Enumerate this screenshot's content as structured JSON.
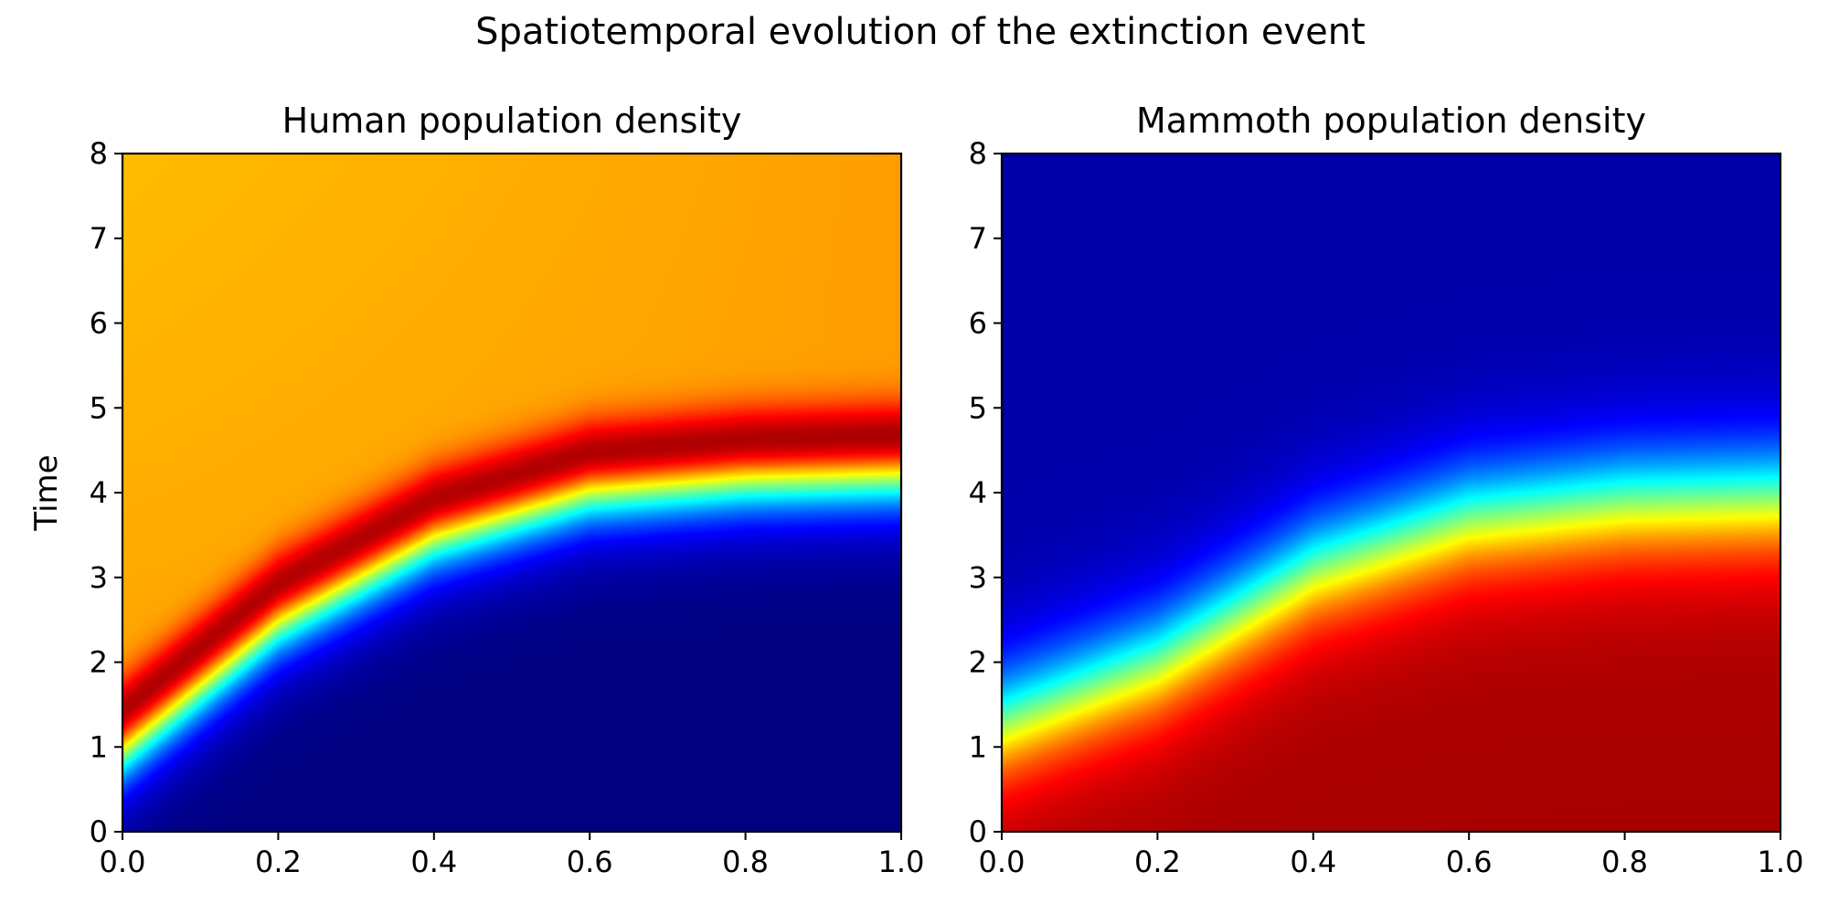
{
  "figure": {
    "suptitle": "Spatiotemporal evolution of the extinction event"
  },
  "chart_data": [
    {
      "type": "heatmap",
      "title": "Human population density",
      "xlabel": "",
      "ylabel": "Time",
      "xlim": [
        0,
        1
      ],
      "ylim": [
        0,
        8
      ],
      "xticks": [
        "0.0",
        "0.2",
        "0.4",
        "0.6",
        "0.8",
        "1.0"
      ],
      "yticks": [
        "0",
        "1",
        "2",
        "3",
        "4",
        "5",
        "6",
        "7",
        "8"
      ],
      "colormap": "jet",
      "colorbar": false,
      "grid": false,
      "front_curve": {
        "x": [
          0.0,
          0.2,
          0.4,
          0.6,
          0.8,
          1.0
        ],
        "t": [
          0.8,
          2.3,
          3.3,
          3.85,
          4.0,
          4.05
        ]
      },
      "notes_on_values": "normalized density (0 = dark blue, 1 = dark red); ~0.7-0.75 (orange) behind the front, peak (dark red) just behind the front, ~0 ahead of it"
    },
    {
      "type": "heatmap",
      "title": "Mammoth population density",
      "xlabel": "",
      "ylabel": "",
      "xlim": [
        0,
        1
      ],
      "ylim": [
        0,
        8
      ],
      "xticks": [
        "0.0",
        "0.2",
        "0.4",
        "0.6",
        "0.8",
        "1.0"
      ],
      "yticks": [
        "0",
        "1",
        "2",
        "3",
        "4",
        "5",
        "6",
        "7",
        "8"
      ],
      "colormap": "jet",
      "colorbar": false,
      "grid": false,
      "front_curve": {
        "x": [
          0.0,
          0.2,
          0.4,
          0.6,
          0.8,
          1.0
        ],
        "t": [
          1.3,
          2.0,
          3.1,
          3.7,
          3.9,
          3.95
        ]
      },
      "notes_on_values": "normalized density (1 = dark red) ahead of the front, decaying to ~0 (dark blue) after it"
    }
  ]
}
